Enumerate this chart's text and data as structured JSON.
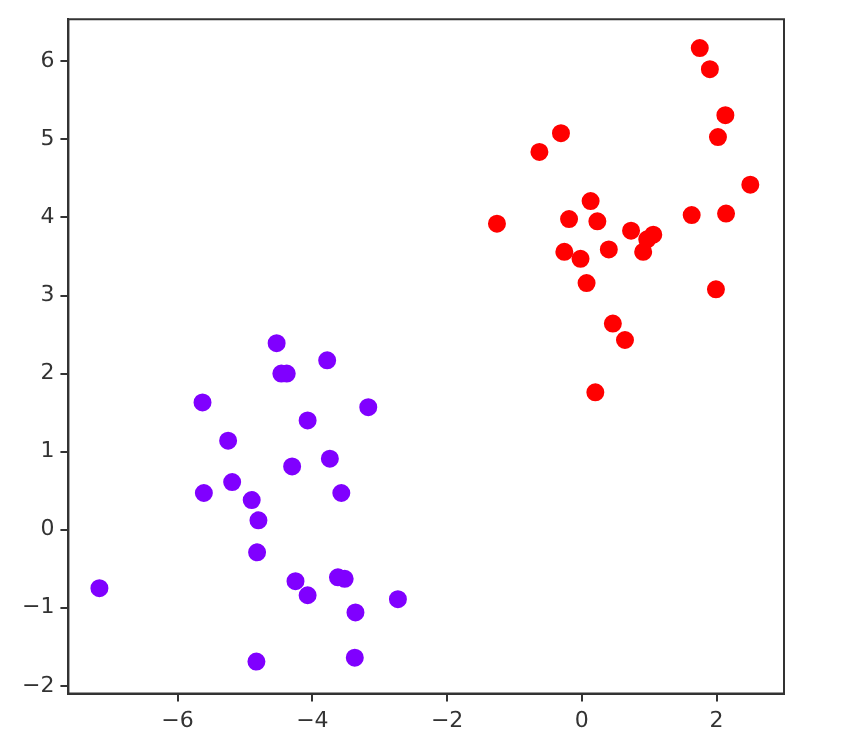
{
  "chart_data": {
    "type": "scatter",
    "xlim": [
      -7.62,
      3.0
    ],
    "ylim": [
      -2.1,
      6.54
    ],
    "xticks": [
      -6,
      -4,
      -2,
      0,
      2
    ],
    "yticks": [
      -2,
      -1,
      0,
      1,
      2,
      3,
      4,
      5,
      6
    ],
    "grid": false,
    "legend": false,
    "marker": "circle",
    "series": [
      {
        "color": "#8000ff",
        "x": [
          -7.16,
          -5.63,
          -5.61,
          -5.25,
          -5.19,
          -4.9,
          -4.8,
          -4.82,
          -4.83,
          -4.53,
          -4.46,
          -4.38,
          -4.07,
          -4.3,
          -4.25,
          -4.07,
          -3.78,
          -3.74,
          -3.57,
          -3.62,
          -3.52,
          -3.36,
          -3.37,
          -3.17,
          -2.73
        ],
        "values": [
          -0.75,
          1.63,
          0.47,
          1.14,
          0.61,
          0.38,
          0.12,
          -0.29,
          -1.69,
          2.39,
          2.0,
          2.0,
          1.4,
          0.81,
          -0.66,
          -0.84,
          2.17,
          0.91,
          0.47,
          -0.61,
          -0.63,
          -1.06,
          -1.64,
          1.57,
          -0.89
        ]
      },
      {
        "color": "#ff0000",
        "x": [
          -1.26,
          -0.63,
          -0.31,
          -0.26,
          -0.19,
          -0.02,
          0.07,
          0.13,
          0.23,
          0.2,
          0.4,
          0.46,
          0.64,
          0.73,
          0.91,
          0.97,
          1.06,
          1.63,
          1.75,
          1.9,
          2.02,
          2.13,
          1.99,
          2.14,
          2.5
        ],
        "values": [
          3.92,
          4.84,
          5.08,
          3.56,
          3.98,
          3.47,
          3.16,
          4.21,
          3.95,
          1.76,
          3.59,
          2.64,
          2.43,
          3.83,
          3.56,
          3.72,
          3.78,
          4.03,
          6.17,
          5.9,
          5.03,
          5.31,
          3.08,
          4.05,
          4.42
        ]
      }
    ]
  }
}
